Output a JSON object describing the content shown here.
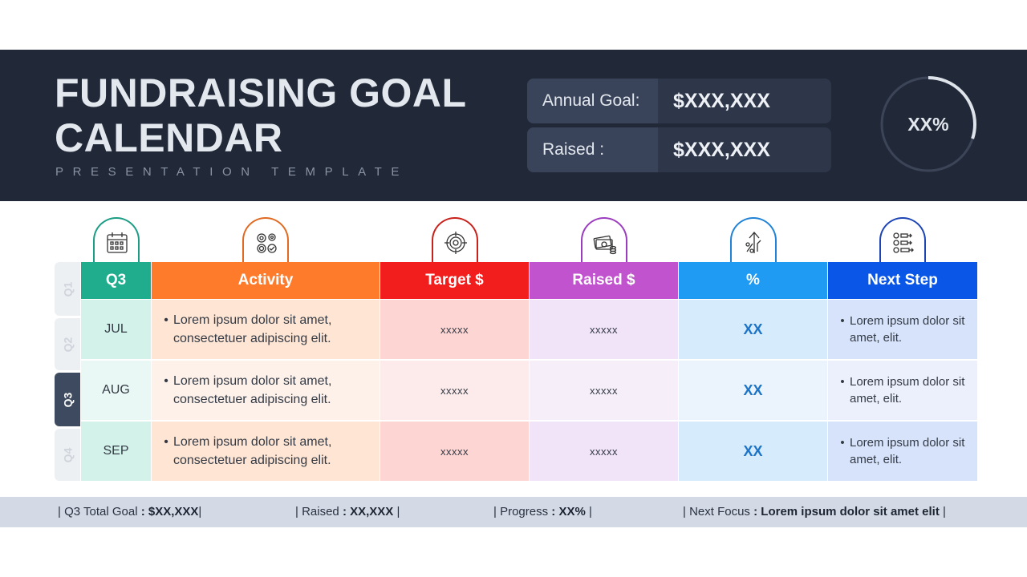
{
  "header": {
    "title": "FUNDRAISING GOAL CALENDAR",
    "subtitle": "PRESENTATION TEMPLATE",
    "annual_goal": {
      "label": "Annual Goal:",
      "value": "$XXX,XXX"
    },
    "raised": {
      "label": "Raised :",
      "value": "$XXX,XXX"
    },
    "progress": {
      "label": "XX%",
      "ring_fraction": 0.3
    }
  },
  "icons": [
    {
      "name": "calendar-icon",
      "color": "#1a9c85"
    },
    {
      "name": "activity-gears-icon",
      "color": "#e06a21"
    },
    {
      "name": "target-icon",
      "color": "#c8201b"
    },
    {
      "name": "money-icon",
      "color": "#9b3cbf"
    },
    {
      "name": "percent-growth-icon",
      "color": "#1f82d6"
    },
    {
      "name": "steps-list-icon",
      "color": "#1d44b5"
    }
  ],
  "quarters": [
    "Q1",
    "Q2",
    "Q3",
    "Q4"
  ],
  "active_quarter": "Q3",
  "table": {
    "headers": [
      "Q3",
      "Activity",
      "Target $",
      "Raised $",
      "%",
      "Next Step"
    ],
    "header_colors": [
      "#1fad8e",
      "#ff7b2c",
      "#f21d1d",
      "#c253cf",
      "#1f9bf4",
      "#0a57e7"
    ],
    "rows": [
      {
        "month": "JUL",
        "activity": "Lorem ipsum dolor sit amet, consectetuer adipiscing elit.",
        "target": "xxxxx",
        "raised": "xxxxx",
        "pct": "XX",
        "next": "Lorem ipsum dolor sit amet, elit."
      },
      {
        "month": "AUG",
        "activity": "Lorem ipsum dolor sit amet, consectetuer adipiscing elit.",
        "target": "xxxxx",
        "raised": "xxxxx",
        "pct": "XX",
        "next": "Lorem ipsum dolor sit amet, elit."
      },
      {
        "month": "SEP",
        "activity": "Lorem ipsum dolor sit amet, consectetuer adipiscing elit.",
        "target": "xxxxx",
        "raised": "xxxxx",
        "pct": "XX",
        "next": "Lorem ipsum dolor sit amet, elit."
      }
    ]
  },
  "footer": {
    "total_goal": {
      "label": "Q3 Total Goal",
      "value": "$XX,XXX"
    },
    "raised": {
      "label": "Raised",
      "value": "XX,XXX"
    },
    "progress": {
      "label": "Progress",
      "value": "XX%"
    },
    "next_focus": {
      "label": "Next Focus",
      "value": "Lorem ipsum dolor sit amet elit"
    }
  }
}
